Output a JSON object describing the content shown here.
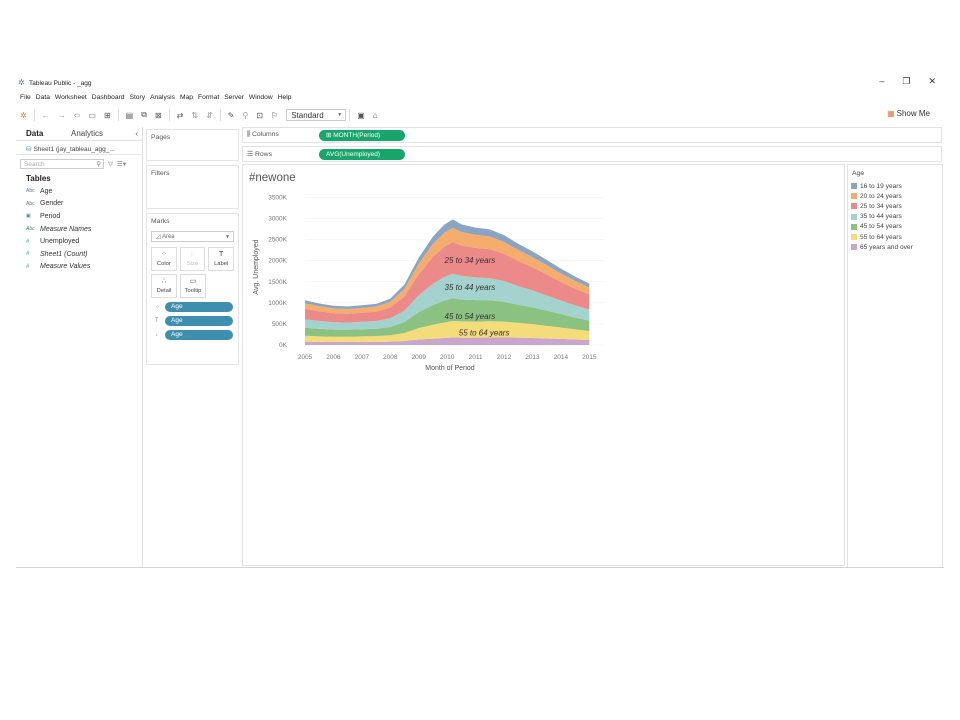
{
  "window": {
    "title": "Tableau Public - _agg",
    "minimize": "–",
    "restore": "❐",
    "close": "✕"
  },
  "menu": [
    "File",
    "Data",
    "Worksheet",
    "Dashboard",
    "Story",
    "Analysis",
    "Map",
    "Format",
    "Server",
    "Window",
    "Help"
  ],
  "toolbar": {
    "fit_select": "Standard",
    "show_me": "Show Me"
  },
  "left_pane": {
    "tab_data": "Data",
    "tab_analytics": "Analytics",
    "collapse": "‹",
    "datasource": "Sheet1 (jay_tableau_agg_...",
    "search_placeholder": "Search",
    "tables_heading": "Tables",
    "fields": [
      {
        "type": "Abc",
        "name": "Age",
        "italic": false,
        "kind": "dim"
      },
      {
        "type": "Abc",
        "name": "Gender",
        "italic": false,
        "kind": "dim"
      },
      {
        "type": "▣",
        "name": "Period",
        "italic": false,
        "kind": "dim"
      },
      {
        "type": "Abc",
        "name": "Measure Names",
        "italic": true,
        "kind": "dim"
      },
      {
        "type": "#",
        "name": "Unemployed",
        "italic": false,
        "kind": "meas"
      },
      {
        "type": "#",
        "name": "Sheet1 (Count)",
        "italic": true,
        "kind": "meas"
      },
      {
        "type": "#",
        "name": "Measure Values",
        "italic": true,
        "kind": "meas"
      }
    ]
  },
  "cards": {
    "pages": "Pages",
    "filters": "Filters",
    "marks": "Marks",
    "mark_type": "Area",
    "buttons": {
      "color": "Color",
      "size": "Size",
      "label": "Label",
      "detail": "Detail",
      "tooltip": "Tooltip"
    },
    "pills": [
      "Age",
      "Age",
      "Age"
    ]
  },
  "shelves": {
    "columns_label": "Columns",
    "columns_pill": "⊞ MONTH(Period)",
    "rows_label": "Rows",
    "rows_pill": "AVG(Unemployed)"
  },
  "legend": {
    "title": "Age",
    "items": [
      {
        "label": "16 to 19 years",
        "color": "#8aa4c4"
      },
      {
        "label": "20 to 24 years",
        "color": "#f4ad6c"
      },
      {
        "label": "25 to 34 years",
        "color": "#ec8a8a"
      },
      {
        "label": "35 to 44 years",
        "color": "#a4d3cf"
      },
      {
        "label": "45 to 54 years",
        "color": "#8cc281"
      },
      {
        "label": "55 to 64 years",
        "color": "#f5dc7a"
      },
      {
        "label": "65 years and over",
        "color": "#c9a6cd"
      }
    ]
  },
  "chart_data": {
    "type": "area",
    "title": "#newone",
    "xlabel": "Month of Period",
    "ylabel": "Avg. Unemployed",
    "ylim": [
      0,
      3700
    ],
    "y_ticks": [
      "0K",
      "500K",
      "1000K",
      "1500K",
      "2000K",
      "2500K",
      "3000K",
      "3500K"
    ],
    "y_tick_values": [
      0,
      500,
      1000,
      1500,
      2000,
      2500,
      3000,
      3500
    ],
    "x_ticks": [
      "2005",
      "2006",
      "2007",
      "2008",
      "2009",
      "2010",
      "2011",
      "2012",
      "2013",
      "2014",
      "2015"
    ],
    "x": [
      2005.0,
      2005.5,
      2006.0,
      2006.5,
      2007.0,
      2007.5,
      2008.0,
      2008.5,
      2009.0,
      2009.5,
      2009.9,
      2010.2,
      2010.5,
      2011.0,
      2011.5,
      2012.0,
      2012.5,
      2013.0,
      2013.5,
      2014.0,
      2014.5,
      2015.0
    ],
    "series": [
      {
        "name": "65 years and over",
        "values": [
          80,
          75,
          70,
          72,
          75,
          75,
          80,
          95,
          130,
          150,
          165,
          180,
          175,
          175,
          178,
          180,
          175,
          165,
          155,
          145,
          130,
          120
        ]
      },
      {
        "name": "55 to 64 years",
        "values": [
          140,
          130,
          125,
          125,
          130,
          135,
          150,
          190,
          270,
          330,
          370,
          390,
          385,
          380,
          385,
          375,
          350,
          330,
          300,
          270,
          240,
          210
        ]
      },
      {
        "name": "45 to 54 years",
        "values": [
          190,
          180,
          170,
          165,
          170,
          175,
          200,
          260,
          380,
          470,
          520,
          540,
          520,
          510,
          500,
          470,
          430,
          400,
          360,
          320,
          280,
          250
        ]
      },
      {
        "name": "35 to 44 years",
        "values": [
          200,
          185,
          175,
          170,
          175,
          180,
          205,
          270,
          400,
          500,
          560,
          580,
          560,
          540,
          520,
          490,
          440,
          400,
          360,
          320,
          290,
          260
        ]
      },
      {
        "name": "25 to 34 years",
        "values": [
          250,
          230,
          215,
          210,
          215,
          225,
          255,
          340,
          500,
          640,
          720,
          750,
          720,
          700,
          690,
          650,
          600,
          550,
          500,
          440,
          400,
          360
        ]
      },
      {
        "name": "20 to 24 years",
        "values": [
          130,
          120,
          115,
          112,
          115,
          120,
          135,
          180,
          250,
          310,
          330,
          340,
          320,
          310,
          300,
          280,
          260,
          240,
          220,
          200,
          180,
          160
        ]
      },
      {
        "name": "16 to 19 years",
        "values": [
          70,
          65,
          62,
          60,
          62,
          65,
          75,
          100,
          140,
          170,
          190,
          200,
          180,
          170,
          170,
          160,
          145,
          135,
          125,
          115,
          105,
          95
        ]
      }
    ],
    "annotations": [
      {
        "text": "25 to 34 years",
        "x": 2010.8,
        "y": 1950
      },
      {
        "text": "35 to 44 years",
        "x": 2010.8,
        "y": 1300
      },
      {
        "text": "45 to 54 years",
        "x": 2010.8,
        "y": 620
      },
      {
        "text": "55 to 64 years",
        "x": 2011.3,
        "y": 230
      }
    ]
  }
}
